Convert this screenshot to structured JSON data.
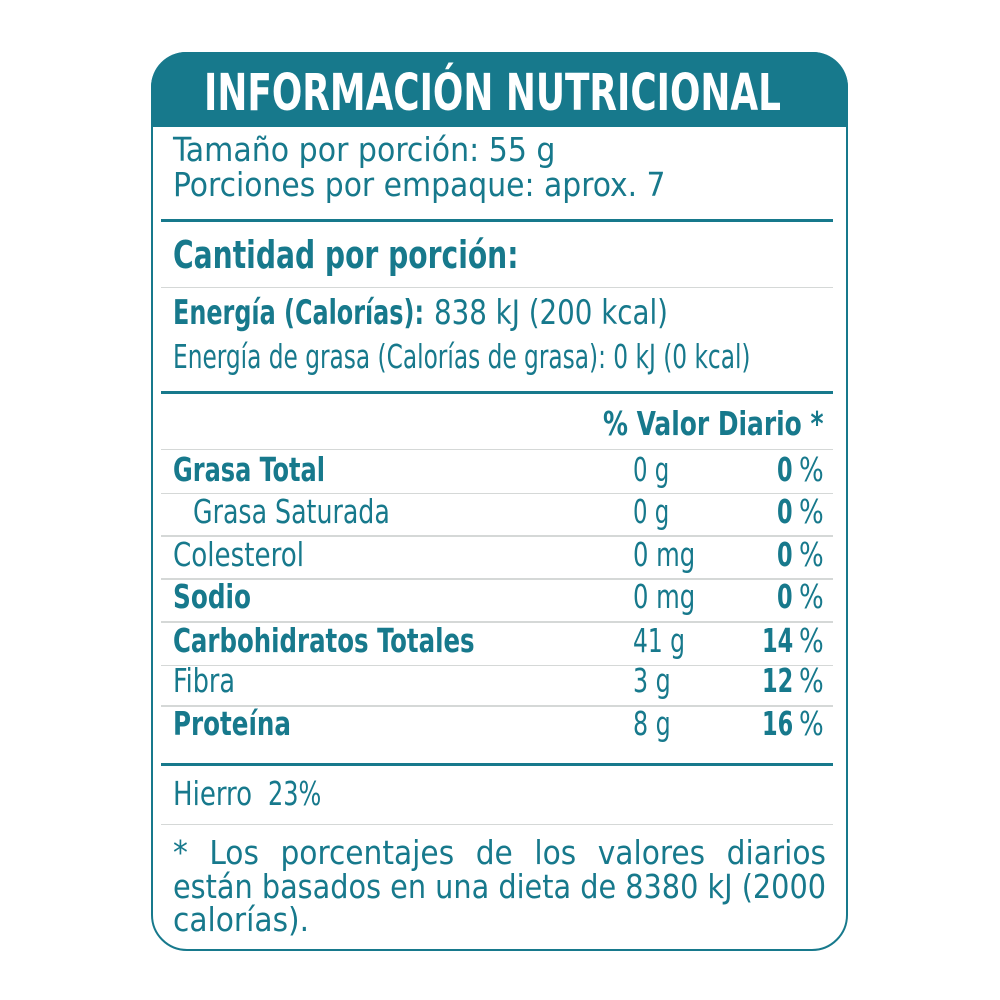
{
  "colors": {
    "teal": "#17798C",
    "light_divider": "#D5D8D7",
    "background": "#FFFFFF",
    "title_text": "#FFFFFF"
  },
  "header": {
    "title": "INFORMACIÓN NUTRICIONAL"
  },
  "serving": {
    "size_line": "Tamaño por porción: 55 g",
    "per_pack_line": "Porciones por empaque: aprox. 7"
  },
  "amount_heading": "Cantidad por porción:",
  "energy": {
    "label": "Energía (Calorías):",
    "value": "838 kJ (200 kcal)",
    "fat_line": "Energía de grasa (Calorías de grasa): 0 kJ (0 kcal)"
  },
  "table": {
    "dv_header": "% Valor Diario *",
    "rows": [
      {
        "label": "Grasa Total",
        "amount": "0 g",
        "dv": "0",
        "dv_unit": "%"
      },
      {
        "label": "Grasa Saturada",
        "amount": "0 g",
        "dv": "0",
        "dv_unit": "%"
      },
      {
        "label": "Colesterol",
        "amount": "0 mg",
        "dv": "0",
        "dv_unit": "%"
      },
      {
        "label": "Sodio",
        "amount": "0 mg",
        "dv": "0",
        "dv_unit": "%"
      },
      {
        "label": "Carbohidratos Totales",
        "amount": "41 g",
        "dv": "14",
        "dv_unit": "%"
      },
      {
        "label": "Fibra",
        "amount": "3 g",
        "dv": "12",
        "dv_unit": "%"
      },
      {
        "label": "Proteína",
        "amount": "8 g",
        "dv": "16",
        "dv_unit": "%"
      }
    ]
  },
  "minerals": {
    "iron_label": "Hierro",
    "iron_value": "23%"
  },
  "footnote": {
    "lines": [
      "* Los porcentajes de los valores diarios",
      "están basados en una dieta de 8380 kJ (2000",
      "calorías)."
    ]
  }
}
